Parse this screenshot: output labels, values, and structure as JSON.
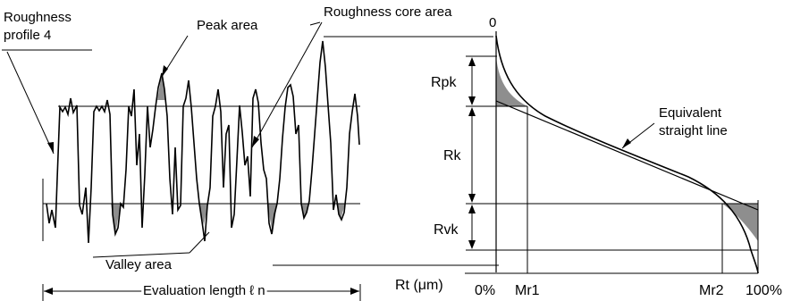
{
  "profile_panel": {
    "profile_label_line1": "Roughness",
    "profile_label_line2": "profile 4",
    "peak_area": "Peak area",
    "core_area": "Roughness core area",
    "valley_area": "Valley area",
    "evaluation_length": "Evaluation length ℓ n"
  },
  "curve_panel": {
    "zero": "0",
    "rpk": "Rpk",
    "rk": "Rk",
    "rvk": "Rvk",
    "equiv_line1": "Equivalent",
    "equiv_line2": "straight line",
    "axis_label": "Rt (μm)",
    "tick_0": "0%",
    "tick_mr1": "Mr1",
    "tick_mr2": "Mr2",
    "tick_100": "100%"
  },
  "colors": {
    "shade": "#8e8e8e",
    "ink": "#000000"
  }
}
